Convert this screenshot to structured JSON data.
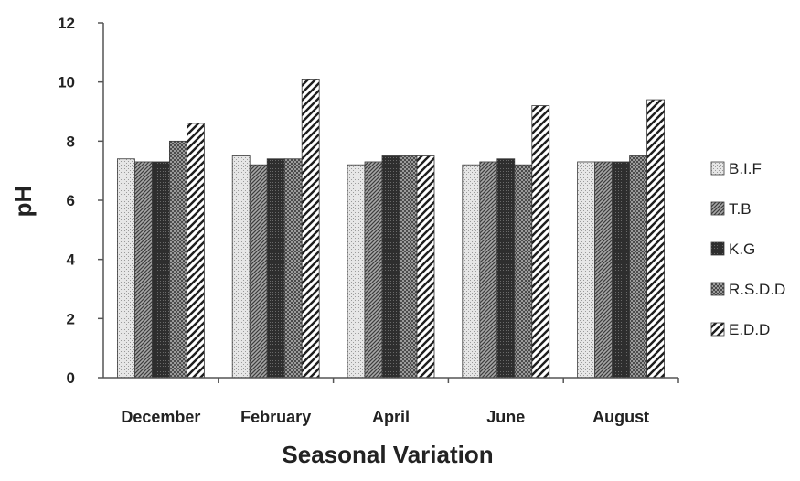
{
  "chart_data": {
    "type": "bar",
    "xlabel": "Seasonal Variation",
    "ylabel": "pH",
    "ylim": [
      0,
      12
    ],
    "yticks": [
      "0",
      "2",
      "4",
      "6",
      "8",
      "10",
      "12"
    ],
    "grid": false,
    "legend_position": "right",
    "categories": [
      "December",
      "February",
      "April",
      "June",
      "August"
    ],
    "series": [
      {
        "name": "B.I.F",
        "values": [
          7.4,
          7.5,
          7.2,
          7.2,
          7.3
        ],
        "pattern": "light-dots",
        "color": "#d9d9d9"
      },
      {
        "name": "T.B",
        "values": [
          7.3,
          7.2,
          7.3,
          7.3,
          7.3
        ],
        "pattern": "diagonal-dense",
        "color": "#8c8c8c"
      },
      {
        "name": "K.G",
        "values": [
          7.3,
          7.4,
          7.5,
          7.4,
          7.3
        ],
        "pattern": "dark",
        "color": "#333333"
      },
      {
        "name": "R.S.D.D",
        "values": [
          8.0,
          7.4,
          7.5,
          7.2,
          7.5
        ],
        "pattern": "checker",
        "color": "#6e6e6e"
      },
      {
        "name": "E.D.D",
        "values": [
          8.6,
          10.1,
          7.5,
          9.2,
          9.4
        ],
        "pattern": "wide-hatch",
        "color": "#ffffff"
      }
    ]
  }
}
